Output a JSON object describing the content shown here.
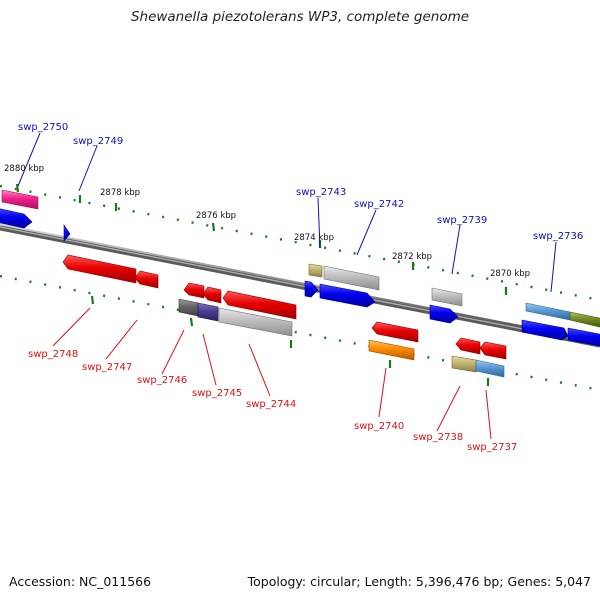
{
  "title": "Shewanella piezotolerans WP3, complete genome",
  "footer": {
    "accession": "Accession: NC_011566",
    "summary": "Topology: circular; Length: 5,396,476 bp; Genes: 5,047"
  },
  "colors": {
    "backbone": "#8a8a8a",
    "tick": "#1a7a1a",
    "plus_label": "#1010c0",
    "minus_label": "#e01010"
  },
  "kbp_labels": [
    "2880 kbp",
    "2878 kbp",
    "2876 kbp",
    "2874 kbp",
    "2872 kbp",
    "2870 kbp"
  ],
  "gene_labels": {
    "plus": [
      "swp_2750",
      "swp_2749",
      "swp_2743",
      "swp_2742",
      "swp_2739",
      "swp_2736"
    ],
    "minus": [
      "swp_2748",
      "swp_2747",
      "swp_2746",
      "swp_2745",
      "swp_2744",
      "swp_2740",
      "swp_2738",
      "swp_2737"
    ]
  }
}
